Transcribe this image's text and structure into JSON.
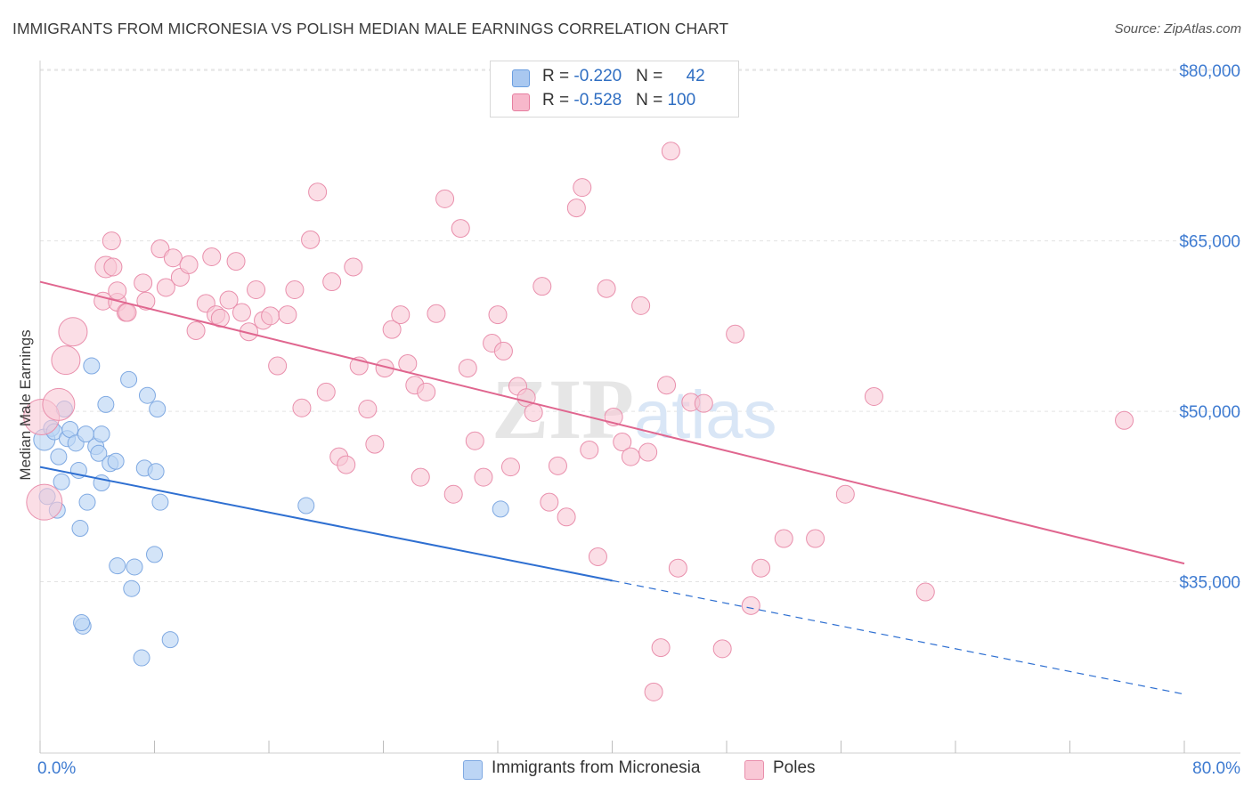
{
  "title": "IMMIGRANTS FROM MICRONESIA VS POLISH MEDIAN MALE EARNINGS CORRELATION CHART",
  "source": "Source: ZipAtlas.com",
  "watermark": {
    "zip": "ZIP",
    "atlas": "atlas"
  },
  "legend": {
    "rows": [
      {
        "r_label": "R = ",
        "r_value": "-0.220",
        "n_label": "N = ",
        "n_value": "42",
        "color": "#a9c8f0",
        "border": "#6a9ee0"
      },
      {
        "r_label": "R = ",
        "r_value": "-0.528",
        "n_label": "N = ",
        "n_value": "100",
        "color": "#f7b8cb",
        "border": "#e67fa0"
      }
    ]
  },
  "bottom_legend": [
    {
      "label": "Immigrants from Micronesia",
      "color": "#bcd5f5",
      "border": "#7fa9e2"
    },
    {
      "label": "Poles",
      "color": "#f9c8d6",
      "border": "#e98fac"
    }
  ],
  "chart_data": {
    "type": "scatter",
    "ylabel": "Median Male Earnings",
    "x_tick_labels": [
      "0.0%",
      "80.0%"
    ],
    "y_tick_labels": [
      "$35,000",
      "$50,000",
      "$65,000",
      "$80,000"
    ],
    "y_ticks": [
      35000,
      50000,
      65000,
      80000
    ],
    "xlim": [
      0,
      80
    ],
    "ylim": [
      20000,
      81500
    ],
    "grid": true,
    "series": [
      {
        "name": "Immigrants from Micronesia",
        "color": "#7fa9e2",
        "fill": "#bcd5f5",
        "trend": {
          "x0": 0,
          "y0": 45100,
          "x1": 40,
          "y1": 35100,
          "dashed_to_x": 80,
          "dashed_to_y": 25100,
          "color": "#2e6fd1"
        },
        "points": [
          [
            0.3,
            47500,
            12
          ],
          [
            0.5,
            42500,
            9
          ],
          [
            0.8,
            48500,
            9
          ],
          [
            1.0,
            48200,
            9
          ],
          [
            1.2,
            41300,
            9
          ],
          [
            1.3,
            46000,
            9
          ],
          [
            1.5,
            43800,
            9
          ],
          [
            1.7,
            50200,
            9
          ],
          [
            1.9,
            47600,
            9
          ],
          [
            2.1,
            48400,
            9
          ],
          [
            2.5,
            47200,
            9
          ],
          [
            2.7,
            44800,
            9
          ],
          [
            2.8,
            39700,
            9
          ],
          [
            3.0,
            31100,
            9
          ],
          [
            3.2,
            48000,
            9
          ],
          [
            3.3,
            42000,
            9
          ],
          [
            3.6,
            54000,
            9
          ],
          [
            3.9,
            46900,
            9
          ],
          [
            4.1,
            46300,
            9
          ],
          [
            4.3,
            48000,
            9
          ],
          [
            4.3,
            43700,
            9
          ],
          [
            4.6,
            50600,
            9
          ],
          [
            4.9,
            45400,
            9
          ],
          [
            5.3,
            45600,
            9
          ],
          [
            5.4,
            36400,
            9
          ],
          [
            2.9,
            31400,
            9
          ],
          [
            6.2,
            52800,
            9
          ],
          [
            6.4,
            34400,
            9
          ],
          [
            6.6,
            36300,
            9
          ],
          [
            7.1,
            28300,
            9
          ],
          [
            7.3,
            45000,
            9
          ],
          [
            7.5,
            51400,
            9
          ],
          [
            8.0,
            37400,
            9
          ],
          [
            8.1,
            44700,
            9
          ],
          [
            8.2,
            50200,
            9
          ],
          [
            8.4,
            42000,
            9
          ],
          [
            9.1,
            29900,
            9
          ],
          [
            18.6,
            41700,
            9
          ],
          [
            32.2,
            41400,
            9
          ]
        ]
      },
      {
        "name": "Poles",
        "color": "#e98fac",
        "fill": "#f9c8d6",
        "trend": {
          "x0": 0,
          "y0": 61400,
          "x1": 80,
          "y1": 36600,
          "color": "#e0668f"
        },
        "points": [
          [
            0.1,
            49500,
            20
          ],
          [
            0.3,
            42000,
            20
          ],
          [
            1.3,
            50600,
            18
          ],
          [
            1.8,
            54500,
            16
          ],
          [
            2.3,
            57000,
            16
          ],
          [
            4.6,
            62700,
            12
          ],
          [
            5.0,
            65000,
            10
          ],
          [
            4.4,
            59700,
            10
          ],
          [
            5.1,
            62700,
            10
          ],
          [
            5.4,
            59600,
            10
          ],
          [
            5.4,
            60600,
            10
          ],
          [
            6.0,
            58700,
            10
          ],
          [
            6.1,
            58700,
            10
          ],
          [
            7.2,
            61300,
            10
          ],
          [
            7.4,
            59700,
            10
          ],
          [
            8.4,
            64300,
            10
          ],
          [
            8.8,
            60900,
            10
          ],
          [
            9.3,
            63500,
            10
          ],
          [
            9.8,
            61800,
            10
          ],
          [
            10.4,
            62900,
            10
          ],
          [
            10.9,
            57100,
            10
          ],
          [
            11.6,
            59500,
            10
          ],
          [
            12.0,
            63600,
            10
          ],
          [
            12.3,
            58500,
            10
          ],
          [
            12.6,
            58200,
            10
          ],
          [
            13.2,
            59800,
            10
          ],
          [
            13.7,
            63200,
            10
          ],
          [
            14.1,
            58700,
            10
          ],
          [
            14.6,
            57000,
            10
          ],
          [
            15.1,
            60700,
            10
          ],
          [
            15.6,
            58000,
            10
          ],
          [
            16.1,
            58400,
            10
          ],
          [
            16.6,
            54000,
            10
          ],
          [
            17.3,
            58500,
            10
          ],
          [
            17.8,
            60700,
            10
          ],
          [
            18.3,
            50300,
            10
          ],
          [
            18.9,
            65100,
            10
          ],
          [
            19.4,
            69300,
            10
          ],
          [
            20.0,
            51700,
            10
          ],
          [
            20.4,
            61400,
            10
          ],
          [
            20.9,
            46000,
            10
          ],
          [
            21.4,
            45300,
            10
          ],
          [
            21.9,
            62700,
            10
          ],
          [
            22.3,
            54000,
            10
          ],
          [
            22.9,
            50200,
            10
          ],
          [
            23.4,
            47100,
            10
          ],
          [
            24.1,
            53800,
            10
          ],
          [
            24.6,
            57200,
            10
          ],
          [
            25.2,
            58500,
            10
          ],
          [
            25.7,
            54200,
            10
          ],
          [
            26.2,
            52300,
            10
          ],
          [
            26.6,
            44200,
            10
          ],
          [
            27.0,
            51700,
            10
          ],
          [
            27.7,
            58600,
            10
          ],
          [
            28.3,
            68700,
            10
          ],
          [
            28.9,
            42700,
            10
          ],
          [
            29.4,
            66100,
            10
          ],
          [
            29.9,
            53800,
            10
          ],
          [
            30.4,
            47400,
            10
          ],
          [
            31.0,
            44200,
            10
          ],
          [
            31.6,
            56000,
            10
          ],
          [
            32.0,
            58500,
            10
          ],
          [
            32.4,
            55300,
            10
          ],
          [
            32.9,
            45100,
            10
          ],
          [
            33.4,
            52200,
            10
          ],
          [
            34.0,
            51200,
            10
          ],
          [
            34.5,
            49900,
            10
          ],
          [
            35.1,
            61000,
            10
          ],
          [
            35.6,
            42000,
            10
          ],
          [
            36.2,
            45200,
            10
          ],
          [
            36.8,
            40700,
            10
          ],
          [
            37.5,
            67900,
            10
          ],
          [
            37.9,
            69700,
            10
          ],
          [
            38.4,
            46600,
            10
          ],
          [
            39.0,
            37200,
            10
          ],
          [
            39.6,
            60800,
            10
          ],
          [
            40.1,
            49500,
            10
          ],
          [
            40.7,
            47300,
            10
          ],
          [
            41.3,
            46000,
            10
          ],
          [
            42.0,
            59300,
            10
          ],
          [
            42.5,
            46400,
            10
          ],
          [
            42.9,
            25300,
            10
          ],
          [
            43.4,
            29200,
            10
          ],
          [
            43.8,
            52300,
            10
          ],
          [
            44.1,
            72900,
            10
          ],
          [
            44.6,
            36200,
            10
          ],
          [
            45.5,
            50800,
            10
          ],
          [
            46.4,
            50700,
            10
          ],
          [
            47.7,
            29100,
            10
          ],
          [
            48.6,
            56800,
            10
          ],
          [
            49.7,
            32900,
            10
          ],
          [
            50.4,
            36200,
            10
          ],
          [
            52.0,
            38800,
            10
          ],
          [
            54.2,
            38800,
            10
          ],
          [
            56.3,
            42700,
            10
          ],
          [
            58.3,
            51300,
            10
          ],
          [
            61.9,
            34100,
            10
          ],
          [
            75.8,
            49200,
            10
          ]
        ]
      }
    ]
  }
}
